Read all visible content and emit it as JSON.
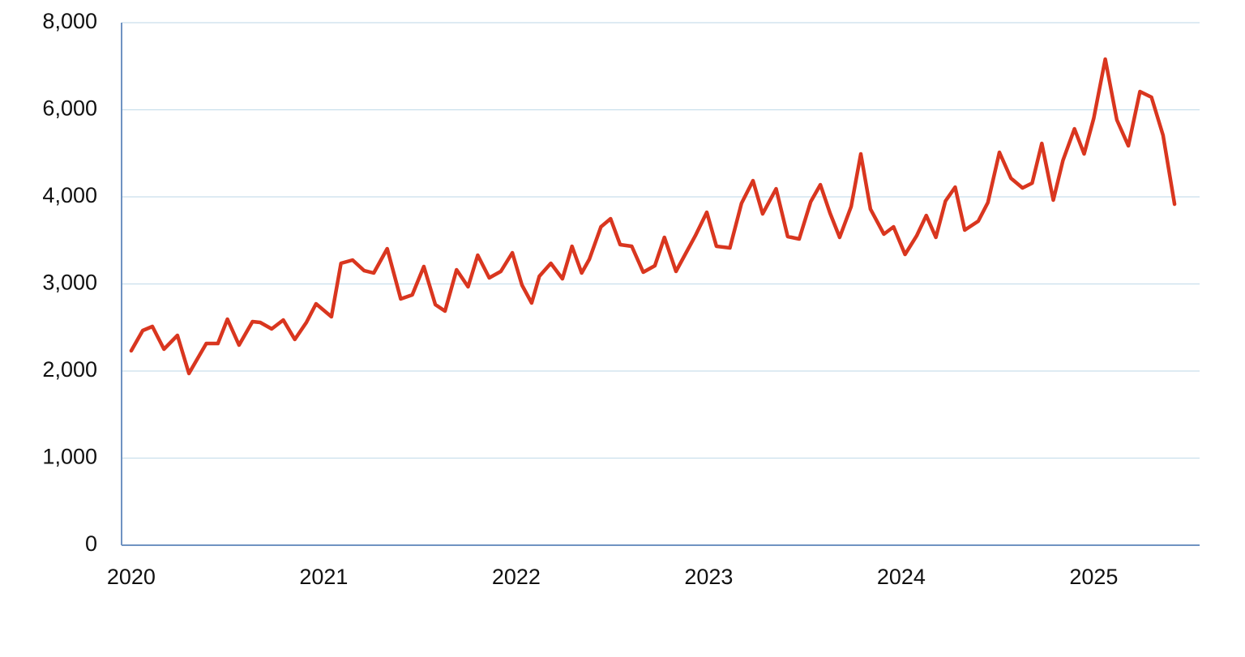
{
  "chart_data": {
    "type": "line",
    "x": [
      2020.0,
      2020.06,
      2020.11,
      2020.17,
      2020.24,
      2020.3,
      2020.39,
      2020.45,
      2020.5,
      2020.56,
      2020.63,
      2020.67,
      2020.73,
      2020.79,
      2020.85,
      2020.91,
      2020.96,
      2021.04,
      2021.09,
      2021.15,
      2021.21,
      2021.26,
      2021.33,
      2021.4,
      2021.46,
      2021.52,
      2021.58,
      2021.63,
      2021.69,
      2021.75,
      2021.8,
      2021.86,
      2021.92,
      2021.98,
      2022.03,
      2022.08,
      2022.12,
      2022.18,
      2022.24,
      2022.29,
      2022.34,
      2022.38,
      2022.44,
      2022.49,
      2022.54,
      2022.6,
      2022.66,
      2022.72,
      2022.77,
      2022.83,
      2022.88,
      2022.93,
      2022.99,
      2023.04,
      2023.11,
      2023.17,
      2023.23,
      2023.28,
      2023.35,
      2023.41,
      2023.47,
      2023.53,
      2023.58,
      2023.63,
      2023.68,
      2023.74,
      2023.79,
      2023.84,
      2023.91,
      2023.96,
      2024.02,
      2024.08,
      2024.13,
      2024.18,
      2024.23,
      2024.28,
      2024.33,
      2024.4,
      2024.45,
      2024.51,
      2024.57,
      2024.63,
      2024.68,
      2024.73,
      2024.79,
      2024.84,
      2024.9,
      2024.95,
      2025.0,
      2025.06,
      2025.12,
      2025.18,
      2025.24,
      2025.3,
      2025.36,
      2025.42
    ],
    "series": [
      {
        "color": "#d9361f",
        "values": [
          2233,
          2465,
          2512,
          2251,
          2409,
          1972,
          2316,
          2316,
          2595,
          2298,
          2567,
          2558,
          2484,
          2586,
          2363,
          2558,
          2772,
          2623,
          3237,
          3274,
          3153,
          3126,
          3405,
          2828,
          2874,
          3200,
          2763,
          2688,
          3163,
          2967,
          3330,
          3070,
          3144,
          3358,
          2986,
          2781,
          3088,
          3237,
          3060,
          3433,
          3126,
          3284,
          3656,
          3749,
          3451,
          3433,
          3135,
          3209,
          3535,
          3144,
          3349,
          3553,
          3823,
          3433,
          3414,
          3926,
          4372,
          3805,
          4186,
          3544,
          3516,
          3944,
          4279,
          3814,
          3535,
          3888,
          4986,
          3860,
          3572,
          3656,
          3339,
          3553,
          3786,
          3535,
          3953,
          4223,
          3619,
          3721,
          3935,
          5023,
          4428,
          4205,
          4316,
          5228,
          3963,
          4837,
          5562,
          4986,
          5804,
          7162,
          5767,
          5172,
          6418,
          6288,
          5414,
          3916
        ]
      }
    ],
    "xlim": [
      2019.95,
      2025.55
    ],
    "xticks": [
      2020,
      2021,
      2022,
      2023,
      2024,
      2025
    ],
    "ylim": [
      0,
      8000
    ],
    "yticks": [
      0,
      {
        "value": 1000,
        "label": "1,000"
      },
      {
        "value": 2000,
        "label": "2,000"
      },
      {
        "value": 3000,
        "label": "3,000"
      },
      {
        "value": 4000,
        "label": "4,000"
      },
      {
        "value": 6000,
        "label": "6,000"
      },
      {
        "value": 8000,
        "label": "8,000"
      }
    ],
    "grid": true
  }
}
